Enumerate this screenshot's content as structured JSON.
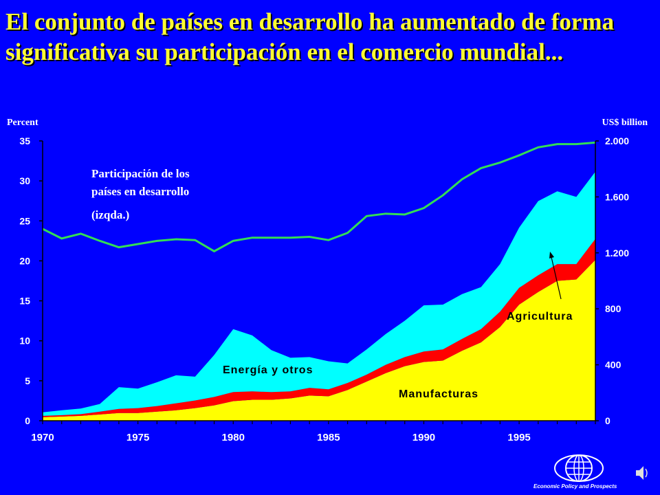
{
  "title": "El conjunto de países en desarrollo ha aumentado de forma significativa su participación en el comercio mundial...",
  "colors": {
    "background": "#0000FF",
    "title": "#FFFF33",
    "manufacturas": "#FFFF00",
    "agricultura": "#FF0000",
    "energia": "#00FFFF",
    "share_line": "#33DD55"
  },
  "brand_text": "Economic Policy and Prospects",
  "icons": [
    "globe-logo-icon",
    "speaker-icon"
  ],
  "chart_data": {
    "type": "area",
    "y_left_label": "Percent",
    "y_right_label": "US$ billion",
    "y_left_range": [
      0,
      35
    ],
    "y_left_ticks": [
      0,
      5,
      10,
      15,
      20,
      25,
      30,
      35
    ],
    "y_right_range": [
      0,
      2000
    ],
    "y_right_tick_labels": [
      "0",
      "400",
      "800",
      "1.200",
      "1.600",
      "2.000"
    ],
    "y_right_tick_values": [
      0,
      400,
      800,
      1200,
      1600,
      2000
    ],
    "x_tick_labels": [
      "1970",
      "1975",
      "1980",
      "1985",
      "1990",
      "1995"
    ],
    "x_tick_values": [
      1970,
      1975,
      1980,
      1985,
      1990,
      1995
    ],
    "x": [
      1970,
      1971,
      1972,
      1973,
      1974,
      1975,
      1976,
      1977,
      1978,
      1979,
      1980,
      1981,
      1982,
      1983,
      1984,
      1985,
      1986,
      1987,
      1988,
      1989,
      1990,
      1991,
      1992,
      1993,
      1994,
      1995,
      1996,
      1997,
      1998,
      1999
    ],
    "stacked_series": [
      {
        "name": "Manufacturas",
        "axis": "right",
        "values": [
          25,
          30,
          35,
          45,
          55,
          55,
          65,
          75,
          90,
          110,
          140,
          150,
          150,
          160,
          180,
          175,
          220,
          280,
          340,
          390,
          420,
          430,
          500,
          560,
          670,
          830,
          920,
          1000,
          1010,
          1150
        ]
      },
      {
        "name": "Agricultura",
        "axis": "right",
        "values": [
          10,
          10,
          12,
          20,
          30,
          35,
          40,
          50,
          55,
          60,
          65,
          60,
          55,
          50,
          55,
          50,
          50,
          50,
          60,
          65,
          75,
          80,
          85,
          95,
          110,
          120,
          120,
          120,
          110,
          150
        ]
      },
      {
        "name": "Energía y otros",
        "axis": "right",
        "values": [
          25,
          35,
          40,
          55,
          155,
          140,
          170,
          200,
          170,
          300,
          450,
          400,
          300,
          240,
          220,
          200,
          140,
          180,
          220,
          260,
          330,
          320,
          320,
          300,
          340,
          430,
          530,
          520,
          480,
          480
        ]
      }
    ],
    "line_series": {
      "name": "Participación de los países en desarrollo (izqda.)",
      "axis": "left",
      "values": [
        24,
        22.8,
        23.4,
        22.5,
        21.7,
        22.1,
        22.5,
        22.7,
        22.6,
        21.2,
        22.5,
        22.9,
        22.9,
        22.9,
        23,
        22.6,
        23.5,
        25.6,
        25.9,
        25.8,
        26.6,
        28.2,
        30.2,
        31.6,
        32.3,
        33.2,
        34.2,
        34.6,
        34.6,
        34.8
      ]
    },
    "annotations": {
      "share": [
        "Participación de los",
        "países en desarrollo",
        "(izqda.)"
      ],
      "energia": "Energía y otros",
      "manufacturas": "Manufacturas",
      "agricultura": "Agricultura"
    }
  }
}
